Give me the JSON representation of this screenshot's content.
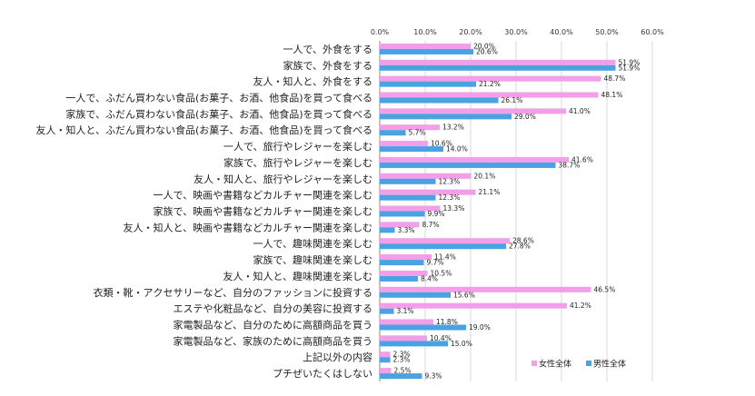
{
  "chart_data": {
    "type": "bar",
    "orientation": "horizontal",
    "categories": [
      "一人で、外食をする",
      "家族で、外食をする",
      "友人・知人と、外食をする",
      "一人で、ふだん買わない食品(お菓子、お酒、他食品)を買って食べる",
      "家族で、ふだん買わない食品(お菓子、お酒、他食品)を買って食べる",
      "友人・知人と、ふだん買わない食品(お菓子、お酒、他食品)を買って食べる",
      "一人で、旅行やレジャーを楽しむ",
      "家族で、旅行やレジャーを楽しむ",
      "友人・知人と、旅行やレジャーを楽しむ",
      "一人で、映画や書籍などカルチャー関連を楽しむ",
      "家族で、映画や書籍などカルチャー関連を楽しむ",
      "友人・知人と、映画や書籍などカルチャー関連を楽しむ",
      "一人で、趣味関連を楽しむ",
      "家族で、趣味関連を楽しむ",
      "友人・知人と、趣味関連を楽しむ",
      "衣類・靴・アクセサリーなど、自分のファッションに投資する",
      "エステや化粧品など、自分の美容に投資する",
      "家電製品など、自分のために高額商品を買う",
      "家電製品など、家族のために高額商品を買う",
      "上記以外の内容",
      "プチぜいたくはしない"
    ],
    "series": [
      {
        "name": "女性全体",
        "color": "#f29ee8",
        "values": [
          20.0,
          51.9,
          48.7,
          48.1,
          41.0,
          13.2,
          10.6,
          41.6,
          20.1,
          21.1,
          13.3,
          8.7,
          28.6,
          11.4,
          10.5,
          46.5,
          41.2,
          11.8,
          10.4,
          2.3,
          2.5
        ],
        "labels": [
          "20.0%",
          "51.9%",
          "48.7%",
          "48.1%",
          "41.0%",
          "13.2%",
          "10.6%",
          "41.6%",
          "20.1%",
          "21.1%",
          "13.3%",
          "8.7%",
          "28.6%",
          "11.4%",
          "10.5%",
          "46.5%",
          "41.2%",
          "11.8%",
          "10.4%",
          "2.3%",
          "2.5%"
        ]
      },
      {
        "name": "男性全体",
        "color": "#4aa3e0",
        "values": [
          20.6,
          51.9,
          21.2,
          26.1,
          29.0,
          5.7,
          14.0,
          38.7,
          12.3,
          12.3,
          9.9,
          3.3,
          27.8,
          9.7,
          8.4,
          15.6,
          3.1,
          19.0,
          15.0,
          2.3,
          9.3
        ],
        "labels": [
          "20.6%",
          "51.9%",
          "21.2%",
          "26.1%",
          "29.0%",
          "5.7%",
          "14.0%",
          "38.7%",
          "12.3%",
          "12.3%",
          "9.9%",
          "3.3%",
          "27.8%",
          "9.7%",
          "8.4%",
          "15.6%",
          "3.1%",
          "19.0%",
          "15.0%",
          "2.3%",
          "9.3%"
        ]
      }
    ],
    "xticks": [
      "0.0%",
      "10.0%",
      "20.0%",
      "30.0%",
      "40.0%",
      "50.0%",
      "60.0%"
    ],
    "xlim": [
      0,
      60
    ],
    "xlabel": "",
    "ylabel": "",
    "title": "",
    "grid": true,
    "legend_position": "bottom-right"
  }
}
